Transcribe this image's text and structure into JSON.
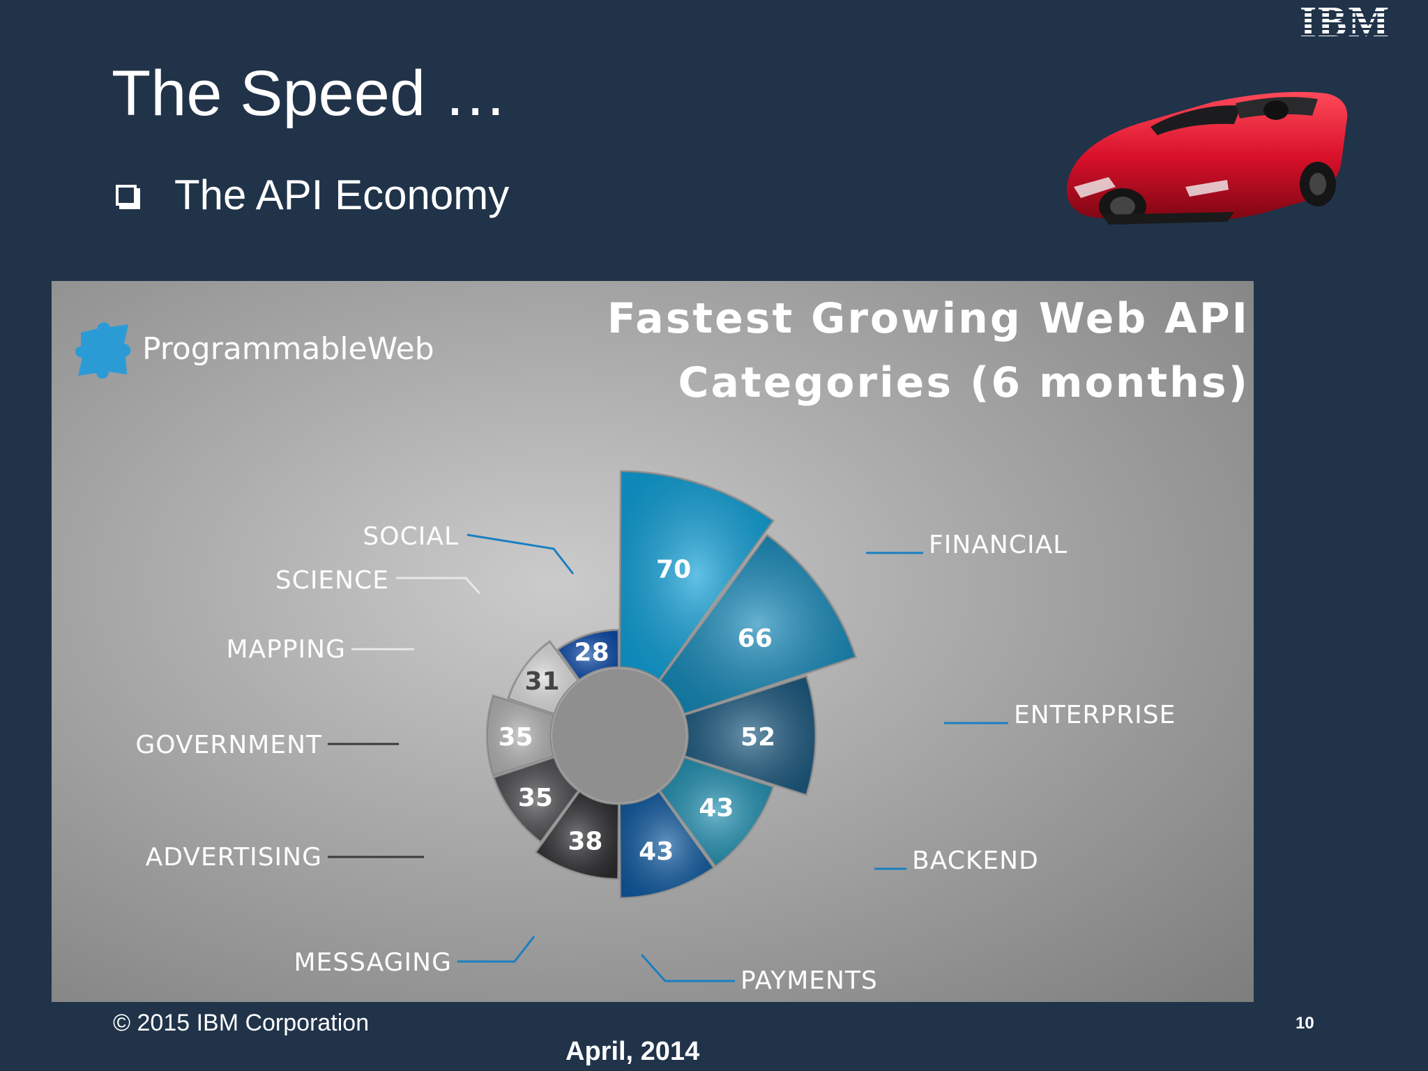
{
  "slide": {
    "title": "The Speed …",
    "bullet": "The API Economy",
    "logo_text": "IBM",
    "copyright": "© 2015 IBM Corporation",
    "page_number": "10",
    "date": "April, 2014"
  },
  "chart_source": "ProgrammableWeb",
  "chart_data": {
    "type": "pie",
    "title_line1": "Fastest Growing Web API",
    "title_line2": "Categories (6 months)",
    "slices": [
      {
        "label": "FINANCIAL",
        "value": 70,
        "color": "#0fa0d8"
      },
      {
        "label": "ENTERPRISE",
        "value": 66,
        "color": "#1488b8"
      },
      {
        "label": "BACKEND",
        "value": 52,
        "color": "#1d5a80"
      },
      {
        "label": "PAYMENTS",
        "value": 43,
        "color": "#1f8fb0"
      },
      {
        "label": "MESSAGING",
        "value": 43,
        "color": "#0f5aa0"
      },
      {
        "label": "ADVERTISING",
        "value": 38,
        "color": "#2d2d30"
      },
      {
        "label": "GOVERNMENT",
        "value": 35,
        "color": "#4a4a4d"
      },
      {
        "label": "MAPPING",
        "value": 35,
        "color": "#b3b3b3"
      },
      {
        "label": "SCIENCE",
        "value": 31,
        "color": "#dcdcdc"
      },
      {
        "label": "SOCIAL",
        "value": 28,
        "color": "#0c4aa8"
      }
    ]
  }
}
